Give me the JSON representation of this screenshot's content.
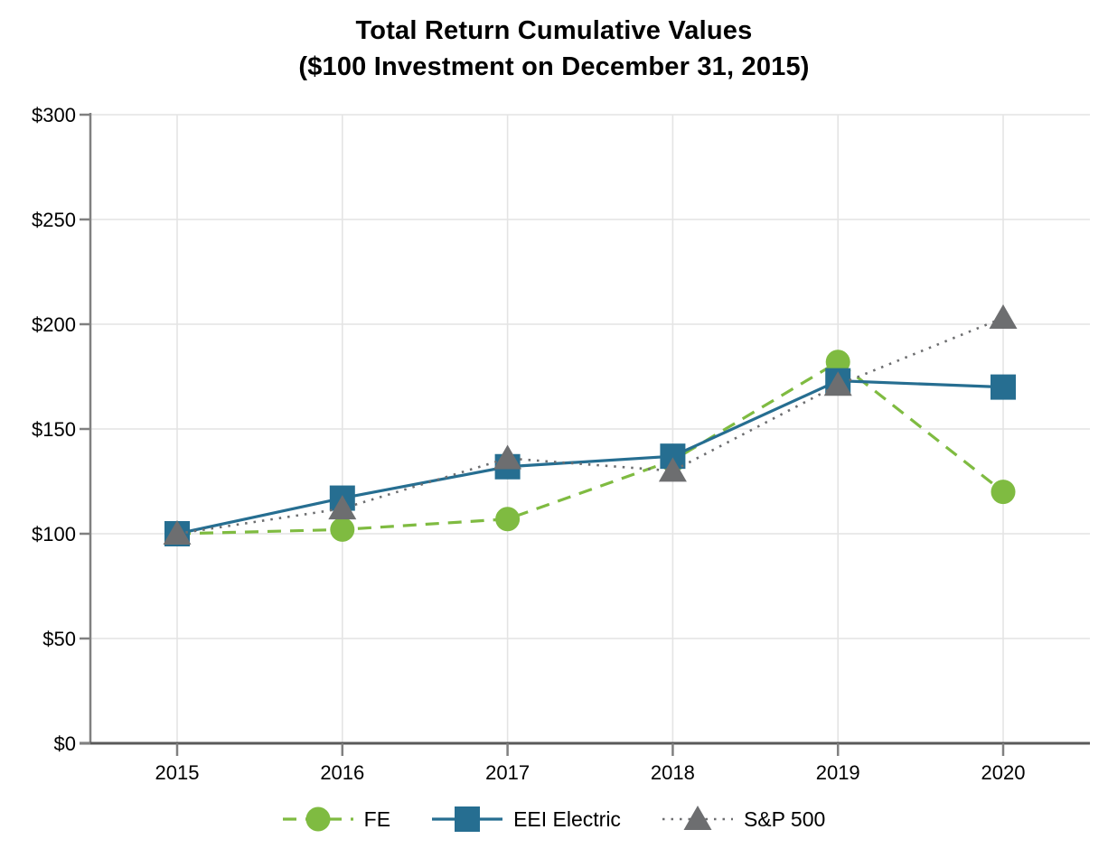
{
  "title": {
    "line1": "Total Return Cumulative Values",
    "line2": "($100 Investment on December 31, 2015)"
  },
  "chart_data": {
    "type": "line",
    "categories": [
      "2015",
      "2016",
      "2017",
      "2018",
      "2019",
      "2020"
    ],
    "series": [
      {
        "name": "FE",
        "marker": "circle",
        "line_style": "dashed",
        "color": "#7FBB41",
        "values": [
          100,
          102,
          107,
          135,
          182,
          120
        ]
      },
      {
        "name": "EEI Electric",
        "marker": "square",
        "line_style": "solid",
        "color": "#266E91",
        "values": [
          100,
          117,
          132,
          137,
          173,
          170
        ]
      },
      {
        "name": "S&P 500",
        "marker": "triangle",
        "line_style": "dotted",
        "color": "#6D6E70",
        "values": [
          100,
          112,
          136,
          130,
          171,
          203
        ]
      }
    ],
    "title": "Total Return Cumulative Values ($100 Investment on December 31, 2015)",
    "xlabel": "",
    "ylabel": "",
    "ylim": [
      0,
      300
    ],
    "ytick_step": 50,
    "ytick_labels": [
      "$0",
      "$50",
      "$100",
      "$150",
      "$200",
      "$250",
      "$300"
    ],
    "grid": true,
    "legend_position": "bottom",
    "colors": {
      "axis_line": "#595959",
      "yaxis_line": "#808080",
      "grid_line": "#e4e4e4",
      "tick_text": "#000000"
    }
  }
}
